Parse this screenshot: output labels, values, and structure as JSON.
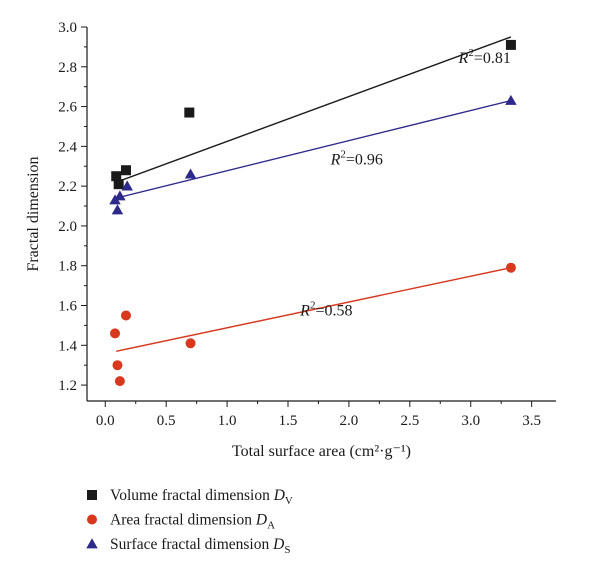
{
  "chart_data": {
    "type": "scatter",
    "xlabel": "Total surface area (cm²·g⁻¹)",
    "ylabel": "Fractal dimension",
    "xlim": [
      -0.15,
      3.7
    ],
    "ylim": [
      1.12,
      3.0
    ],
    "xticks": [
      "0.0",
      "0.5",
      "1.0",
      "1.5",
      "2.0",
      "2.5",
      "3.0",
      "3.5"
    ],
    "xtick_values": [
      0.0,
      0.5,
      1.0,
      1.5,
      2.0,
      2.5,
      3.0,
      3.5
    ],
    "yticks": [
      "1.2",
      "1.4",
      "1.6",
      "1.8",
      "2.0",
      "2.2",
      "2.4",
      "2.6",
      "2.8",
      "3.0"
    ],
    "ytick_values": [
      1.2,
      1.4,
      1.6,
      1.8,
      2.0,
      2.2,
      2.4,
      2.6,
      2.8,
      3.0
    ],
    "grid": false,
    "legend_position": "bottom",
    "series": [
      {
        "name": "Volume fractal dimension D",
        "subscript": "V",
        "marker": "square",
        "color": "#1a1a1a",
        "x": [
          0.09,
          0.11,
          0.17,
          0.69,
          3.33
        ],
        "y": [
          2.25,
          2.21,
          2.28,
          2.57,
          2.91
        ],
        "fit": {
          "x": [
            0.09,
            3.33
          ],
          "y": [
            2.22,
            2.95
          ]
        },
        "r2": "0.81"
      },
      {
        "name": "Area fractal dimension D",
        "subscript": "A",
        "marker": "circle",
        "color": "#d8381e",
        "x": [
          0.08,
          0.1,
          0.12,
          0.17,
          0.7,
          3.33
        ],
        "y": [
          1.46,
          1.3,
          1.22,
          1.55,
          1.41,
          1.79
        ],
        "fit": {
          "x": [
            0.09,
            3.33
          ],
          "y": [
            1.37,
            1.79
          ]
        },
        "r2": "0.58"
      },
      {
        "name": "Surface fractal dimension D",
        "subscript": "S",
        "marker": "triangle",
        "color": "#2e2a8c",
        "x": [
          0.08,
          0.1,
          0.12,
          0.18,
          0.7,
          3.33
        ],
        "y": [
          2.13,
          2.08,
          2.15,
          2.2,
          2.26,
          2.63
        ],
        "fit": {
          "x": [
            0.09,
            3.33
          ],
          "y": [
            2.14,
            2.63
          ]
        },
        "r2": "0.96"
      }
    ],
    "annotations": [
      {
        "series_index": 0,
        "x": 2.9,
        "y": 2.82
      },
      {
        "series_index": 2,
        "x": 1.85,
        "y": 2.31
      },
      {
        "series_index": 1,
        "x": 1.6,
        "y": 1.55
      }
    ]
  }
}
